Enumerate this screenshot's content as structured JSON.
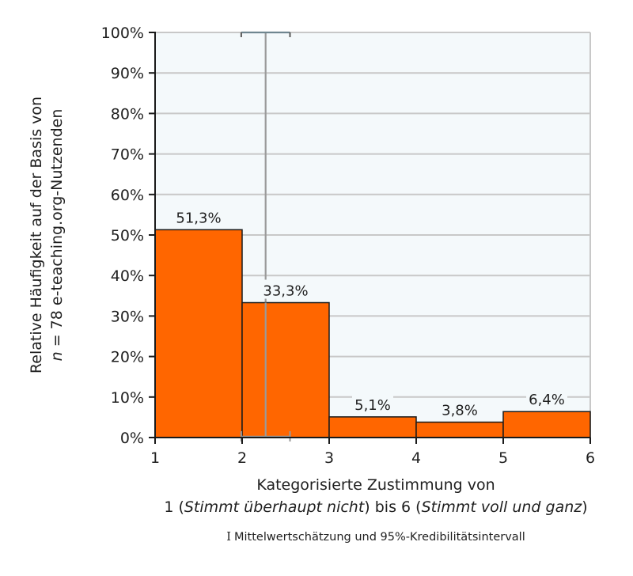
{
  "chart_data": {
    "type": "bar",
    "subtype": "histogram",
    "title": "",
    "bins": [
      [
        1,
        2
      ],
      [
        2,
        3
      ],
      [
        3,
        4
      ],
      [
        4,
        5
      ],
      [
        5,
        6
      ]
    ],
    "categories": [
      "1-2",
      "2-3",
      "3-4",
      "4-5",
      "5-6"
    ],
    "values": [
      51.3,
      33.3,
      5.1,
      3.8,
      6.4
    ],
    "value_labels": [
      "51,3%",
      "33,3%",
      "5,1%",
      "3,8%",
      "6,4%"
    ],
    "x_ticks": [
      "1",
      "2",
      "3",
      "4",
      "5",
      "6"
    ],
    "y_ticks": [
      "0%",
      "10%",
      "20%",
      "30%",
      "40%",
      "50%",
      "60%",
      "70%",
      "80%",
      "90%",
      "100%"
    ],
    "xlim": [
      1,
      6
    ],
    "ylim": [
      0,
      100
    ],
    "grid": true,
    "ylabel_line1": "Relative Häufigkeit auf der Basis von",
    "ylabel_line2_italic": "n",
    "ylabel_line2_rest": " = 78 e-teaching.org-Nutzenden",
    "xlabel_line1": "Kategorisierte Zustimmung von",
    "xlabel_line2": {
      "p1": "1 (",
      "i1": "Stimmt überhaupt nicht",
      "p2": ") bis 6 (",
      "i2": "Stimmt voll und ganz",
      "p3": ")"
    },
    "credible_interval": {
      "mean": 2.27,
      "lower": 1.99,
      "upper": 2.55,
      "label": "Mittelwertschätzung und 95%-Kredibilitätsintervall"
    },
    "legend_glyph": "I",
    "colors": {
      "bar": "#FF6600",
      "bar_outline": "#1a1a1a",
      "plot_bg": "#F4F9FB",
      "grid": "#C8C8C8",
      "ci": "#9A9A9A"
    }
  }
}
